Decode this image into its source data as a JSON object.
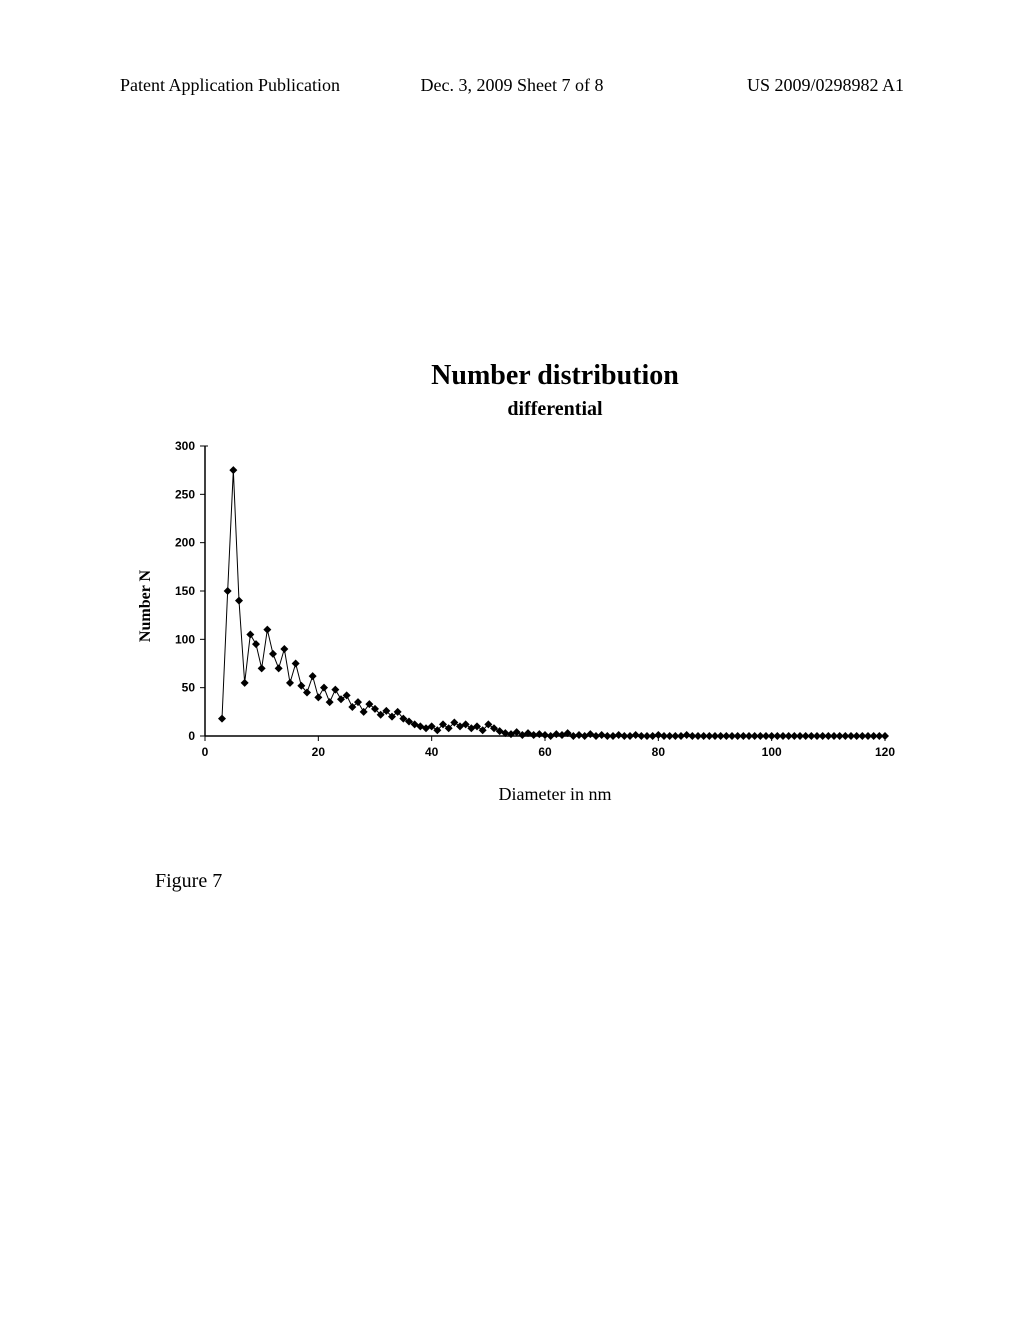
{
  "header": {
    "left": "Patent Application Publication",
    "center": "Dec. 3, 2009  Sheet 7 of 8",
    "right": "US 2009/0298982 A1"
  },
  "chart": {
    "type": "scatter-line",
    "title": "Number distribution",
    "subtitle": "differential",
    "xlabel": "Diameter in nm",
    "ylabel": "Number N",
    "xlim": [
      0,
      120
    ],
    "ylim": [
      0,
      300
    ],
    "xticks": [
      0,
      20,
      40,
      60,
      80,
      100,
      120
    ],
    "yticks": [
      0,
      50,
      100,
      150,
      200,
      250,
      300
    ],
    "xtick_labels": [
      "0",
      "20",
      "40",
      "60",
      "80",
      "100",
      "120"
    ],
    "ytick_labels": [
      "0",
      "50",
      "100",
      "150",
      "200",
      "250",
      "300"
    ],
    "background_color": "#ffffff",
    "axis_color": "#000000",
    "line_color": "#000000",
    "marker_color": "#000000",
    "marker_style": "diamond",
    "marker_size": 4,
    "line_width": 1,
    "tick_fontsize": 12,
    "label_fontsize": 16,
    "title_fontsize": 28,
    "subtitle_fontsize": 20,
    "data": {
      "x": [
        3,
        4,
        5,
        6,
        7,
        8,
        9,
        10,
        11,
        12,
        13,
        14,
        15,
        16,
        17,
        18,
        19,
        20,
        21,
        22,
        23,
        24,
        25,
        26,
        27,
        28,
        29,
        30,
        31,
        32,
        33,
        34,
        35,
        36,
        37,
        38,
        39,
        40,
        41,
        42,
        43,
        44,
        45,
        46,
        47,
        48,
        49,
        50,
        51,
        52,
        53,
        54,
        55,
        56,
        57,
        58,
        59,
        60,
        61,
        62,
        63,
        64,
        65,
        66,
        67,
        68,
        69,
        70,
        71,
        72,
        73,
        74,
        75,
        76,
        77,
        78,
        79,
        80,
        81,
        82,
        83,
        84,
        85,
        86,
        87,
        88,
        89,
        90,
        91,
        92,
        93,
        94,
        95,
        96,
        97,
        98,
        99,
        100,
        101,
        102,
        103,
        104,
        105,
        106,
        107,
        108,
        109,
        110,
        111,
        112,
        113,
        114,
        115,
        116,
        117,
        118,
        119,
        120
      ],
      "y": [
        18,
        150,
        275,
        140,
        55,
        105,
        95,
        70,
        110,
        85,
        70,
        90,
        55,
        75,
        52,
        45,
        62,
        40,
        50,
        35,
        48,
        38,
        42,
        30,
        35,
        25,
        33,
        28,
        22,
        26,
        20,
        25,
        18,
        15,
        12,
        10,
        8,
        10,
        6,
        12,
        8,
        14,
        10,
        12,
        8,
        10,
        6,
        12,
        8,
        5,
        3,
        2,
        4,
        1,
        3,
        1,
        2,
        1,
        0,
        2,
        1,
        3,
        0,
        1,
        0,
        2,
        0,
        1,
        0,
        0,
        1,
        0,
        0,
        1,
        0,
        0,
        0,
        1,
        0,
        0,
        0,
        0,
        1,
        0,
        0,
        0,
        0,
        0,
        0,
        0,
        0,
        0,
        0,
        0,
        0,
        0,
        0,
        0,
        0,
        0,
        0,
        0,
        0,
        0,
        0,
        0,
        0,
        0,
        0,
        0,
        0,
        0,
        0,
        0,
        0,
        0,
        0,
        0
      ]
    }
  },
  "caption": "Figure 7"
}
